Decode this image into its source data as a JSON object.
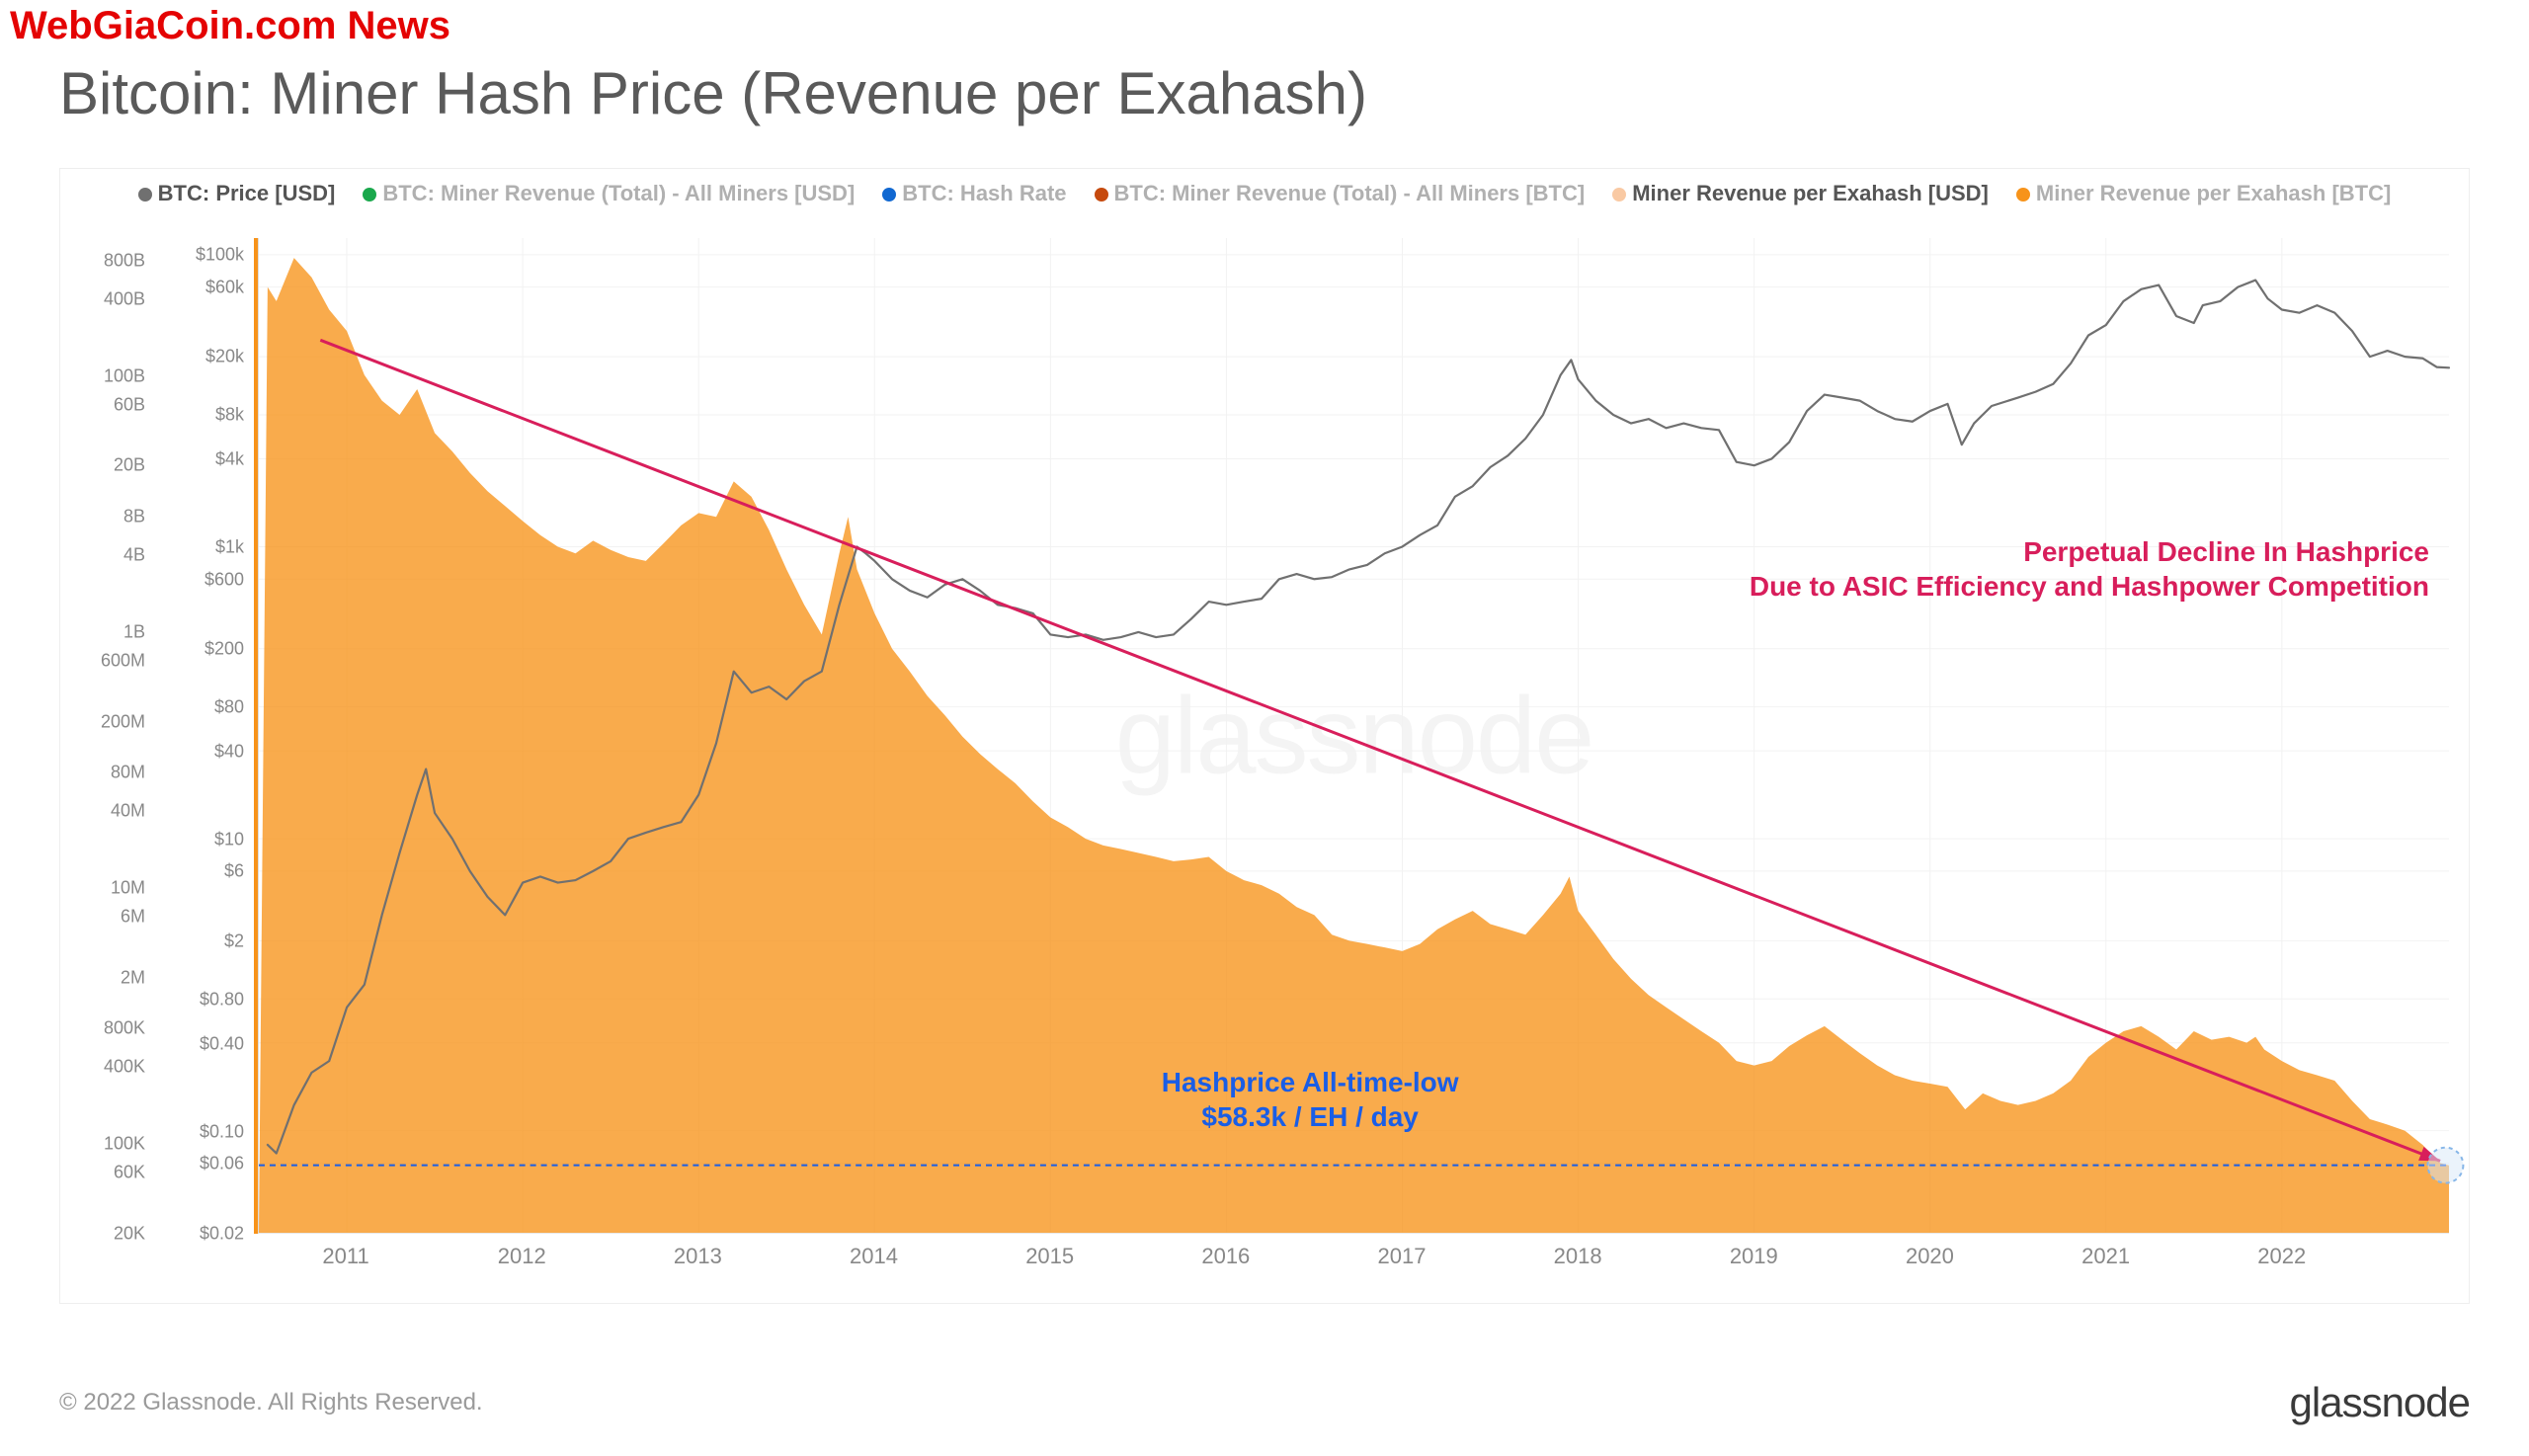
{
  "overlay_brand": "WebGiaCoin.com News",
  "title": "Bitcoin: Miner Hash Price (Revenue per Exahash)",
  "watermark": "glassnode",
  "footer_copyright": "© 2022 Glassnode. All Rights Reserved.",
  "footer_brand": "glassnode",
  "legend": {
    "items": [
      {
        "label": "BTC: Price [USD]",
        "color": "#707070",
        "active": true
      },
      {
        "label": "BTC: Miner Revenue (Total) - All Miners [USD]",
        "color": "#1aa84c",
        "active": false
      },
      {
        "label": "BTC: Hash Rate",
        "color": "#1168d1",
        "active": false
      },
      {
        "label": "BTC: Miner Revenue (Total) - All Miners [BTC]",
        "color": "#c64a0e",
        "active": false
      },
      {
        "label": "Miner Revenue per Exahash [USD]",
        "color": "#f9c9a3",
        "active": true
      },
      {
        "label": "Miner Revenue per Exahash [BTC]",
        "color": "#f7931a",
        "active": false
      }
    ]
  },
  "annotations": {
    "red_line1": "Perpetual Decline In Hashprice",
    "red_line2": "Due to ASIC Efficiency and Hashpower Competition",
    "blue_line1": "Hashprice All-time-low",
    "blue_line2": "$58.3k / EH / day",
    "red_color": "#d81e5b",
    "blue_color": "#1a5ee6"
  },
  "chart": {
    "type": "area_plus_line_log",
    "background_color": "#ffffff",
    "grid_color": "#f2f2f2",
    "plot_years": [
      "2011",
      "2012",
      "2013",
      "2014",
      "2015",
      "2016",
      "2017",
      "2018",
      "2019",
      "2020",
      "2021",
      "2022"
    ],
    "year_x_min": 2010.5,
    "year_x_max": 2022.95,
    "left_axis_outer": {
      "log_min": 20000,
      "log_max": 1200000000000,
      "ticks": [
        "800B",
        "400B",
        "100B",
        "60B",
        "20B",
        "8B",
        "4B",
        "1B",
        "600M",
        "200M",
        "80M",
        "40M",
        "10M",
        "6M",
        "2M",
        "800K",
        "400K",
        "100K",
        "60K",
        "20K"
      ],
      "tick_values": [
        800000000000,
        400000000000,
        100000000000,
        60000000000,
        20000000000,
        8000000000,
        4000000000,
        1000000000,
        600000000,
        200000000,
        80000000,
        40000000,
        10000000,
        6000000,
        2000000,
        800000,
        400000,
        100000,
        60000,
        20000
      ]
    },
    "left_axis_inner": {
      "log_min": 0.02,
      "log_max": 130000,
      "ticks": [
        "$100k",
        "$60k",
        "$20k",
        "$8k",
        "$4k",
        "$1k",
        "$600",
        "$200",
        "$80",
        "$40",
        "$10",
        "$6",
        "$2",
        "$0.80",
        "$0.40",
        "$0.10",
        "$0.06",
        "$0.02"
      ],
      "tick_values": [
        100000,
        60000,
        20000,
        8000,
        4000,
        1000,
        600,
        200,
        80,
        40,
        10,
        6,
        2,
        0.8,
        0.4,
        0.1,
        0.06,
        0.02
      ]
    },
    "hashprice_area": {
      "color": "#f7931a",
      "opacity": 0.78,
      "points_year_value": [
        [
          2010.55,
          60000
        ],
        [
          2010.6,
          48000
        ],
        [
          2010.7,
          95000
        ],
        [
          2010.8,
          70000
        ],
        [
          2010.9,
          42000
        ],
        [
          2011.0,
          30000
        ],
        [
          2011.1,
          15000
        ],
        [
          2011.2,
          10000
        ],
        [
          2011.3,
          8000
        ],
        [
          2011.4,
          12000
        ],
        [
          2011.5,
          6000
        ],
        [
          2011.6,
          4500
        ],
        [
          2011.7,
          3200
        ],
        [
          2011.8,
          2400
        ],
        [
          2011.9,
          1900
        ],
        [
          2012.0,
          1500
        ],
        [
          2012.1,
          1200
        ],
        [
          2012.2,
          1000
        ],
        [
          2012.3,
          900
        ],
        [
          2012.4,
          1100
        ],
        [
          2012.5,
          950
        ],
        [
          2012.6,
          850
        ],
        [
          2012.7,
          800
        ],
        [
          2012.8,
          1050
        ],
        [
          2012.9,
          1400
        ],
        [
          2013.0,
          1700
        ],
        [
          2013.1,
          1600
        ],
        [
          2013.2,
          2800
        ],
        [
          2013.3,
          2200
        ],
        [
          2013.4,
          1300
        ],
        [
          2013.5,
          700
        ],
        [
          2013.6,
          400
        ],
        [
          2013.7,
          250
        ],
        [
          2013.8,
          900
        ],
        [
          2013.85,
          1600
        ],
        [
          2013.9,
          700
        ],
        [
          2014.0,
          350
        ],
        [
          2014.1,
          200
        ],
        [
          2014.2,
          140
        ],
        [
          2014.3,
          95
        ],
        [
          2014.4,
          70
        ],
        [
          2014.5,
          50
        ],
        [
          2014.6,
          38
        ],
        [
          2014.7,
          30
        ],
        [
          2014.8,
          24
        ],
        [
          2014.9,
          18
        ],
        [
          2015.0,
          14
        ],
        [
          2015.1,
          12
        ],
        [
          2015.2,
          10
        ],
        [
          2015.3,
          9
        ],
        [
          2015.4,
          8.5
        ],
        [
          2015.5,
          8
        ],
        [
          2015.6,
          7.5
        ],
        [
          2015.7,
          7
        ],
        [
          2015.8,
          7.2
        ],
        [
          2015.9,
          7.5
        ],
        [
          2016.0,
          6
        ],
        [
          2016.1,
          5.2
        ],
        [
          2016.2,
          4.8
        ],
        [
          2016.3,
          4.2
        ],
        [
          2016.4,
          3.4
        ],
        [
          2016.5,
          3.0
        ],
        [
          2016.6,
          2.2
        ],
        [
          2016.7,
          2.0
        ],
        [
          2016.8,
          1.9
        ],
        [
          2016.9,
          1.8
        ],
        [
          2017.0,
          1.7
        ],
        [
          2017.1,
          1.9
        ],
        [
          2017.2,
          2.4
        ],
        [
          2017.3,
          2.8
        ],
        [
          2017.4,
          3.2
        ],
        [
          2017.5,
          2.6
        ],
        [
          2017.6,
          2.4
        ],
        [
          2017.7,
          2.2
        ],
        [
          2017.8,
          3.0
        ],
        [
          2017.9,
          4.2
        ],
        [
          2017.95,
          5.5
        ],
        [
          2018.0,
          3.2
        ],
        [
          2018.1,
          2.2
        ],
        [
          2018.2,
          1.5
        ],
        [
          2018.3,
          1.1
        ],
        [
          2018.4,
          0.85
        ],
        [
          2018.5,
          0.7
        ],
        [
          2018.6,
          0.58
        ],
        [
          2018.7,
          0.48
        ],
        [
          2018.8,
          0.4
        ],
        [
          2018.9,
          0.3
        ],
        [
          2019.0,
          0.28
        ],
        [
          2019.1,
          0.3
        ],
        [
          2019.2,
          0.38
        ],
        [
          2019.3,
          0.45
        ],
        [
          2019.4,
          0.52
        ],
        [
          2019.5,
          0.42
        ],
        [
          2019.6,
          0.34
        ],
        [
          2019.7,
          0.28
        ],
        [
          2019.8,
          0.24
        ],
        [
          2019.9,
          0.22
        ],
        [
          2020.0,
          0.21
        ],
        [
          2020.1,
          0.2
        ],
        [
          2020.2,
          0.14
        ],
        [
          2020.3,
          0.18
        ],
        [
          2020.4,
          0.16
        ],
        [
          2020.5,
          0.15
        ],
        [
          2020.6,
          0.16
        ],
        [
          2020.7,
          0.18
        ],
        [
          2020.8,
          0.22
        ],
        [
          2020.9,
          0.32
        ],
        [
          2021.0,
          0.4
        ],
        [
          2021.1,
          0.48
        ],
        [
          2021.2,
          0.52
        ],
        [
          2021.3,
          0.44
        ],
        [
          2021.4,
          0.36
        ],
        [
          2021.5,
          0.48
        ],
        [
          2021.6,
          0.42
        ],
        [
          2021.7,
          0.44
        ],
        [
          2021.8,
          0.4
        ],
        [
          2021.85,
          0.44
        ],
        [
          2021.9,
          0.36
        ],
        [
          2022.0,
          0.3
        ],
        [
          2022.1,
          0.26
        ],
        [
          2022.2,
          0.24
        ],
        [
          2022.3,
          0.22
        ],
        [
          2022.4,
          0.16
        ],
        [
          2022.5,
          0.12
        ],
        [
          2022.6,
          0.11
        ],
        [
          2022.7,
          0.1
        ],
        [
          2022.8,
          0.08
        ],
        [
          2022.9,
          0.06
        ],
        [
          2022.95,
          0.058
        ]
      ]
    },
    "price_line": {
      "color": "#707070",
      "width": 2.2,
      "points_year_value": [
        [
          2010.55,
          0.08
        ],
        [
          2010.6,
          0.07
        ],
        [
          2010.7,
          0.15
        ],
        [
          2010.8,
          0.25
        ],
        [
          2010.9,
          0.3
        ],
        [
          2011.0,
          0.7
        ],
        [
          2011.1,
          1.0
        ],
        [
          2011.2,
          3.0
        ],
        [
          2011.3,
          8.0
        ],
        [
          2011.4,
          20.0
        ],
        [
          2011.45,
          30.0
        ],
        [
          2011.5,
          15.0
        ],
        [
          2011.6,
          10.0
        ],
        [
          2011.7,
          6.0
        ],
        [
          2011.8,
          4.0
        ],
        [
          2011.9,
          3.0
        ],
        [
          2012.0,
          5.0
        ],
        [
          2012.1,
          5.5
        ],
        [
          2012.2,
          5.0
        ],
        [
          2012.3,
          5.2
        ],
        [
          2012.4,
          6.0
        ],
        [
          2012.5,
          7.0
        ],
        [
          2012.6,
          10.0
        ],
        [
          2012.7,
          11.0
        ],
        [
          2012.8,
          12.0
        ],
        [
          2012.9,
          13.0
        ],
        [
          2013.0,
          20.0
        ],
        [
          2013.1,
          45.0
        ],
        [
          2013.2,
          140.0
        ],
        [
          2013.3,
          100.0
        ],
        [
          2013.4,
          110.0
        ],
        [
          2013.5,
          90.0
        ],
        [
          2013.6,
          120.0
        ],
        [
          2013.7,
          140.0
        ],
        [
          2013.8,
          400.0
        ],
        [
          2013.9,
          1000.0
        ],
        [
          2013.95,
          900.0
        ],
        [
          2014.0,
          800.0
        ],
        [
          2014.1,
          600.0
        ],
        [
          2014.2,
          500.0
        ],
        [
          2014.3,
          450.0
        ],
        [
          2014.4,
          550.0
        ],
        [
          2014.5,
          600.0
        ],
        [
          2014.6,
          500.0
        ],
        [
          2014.7,
          400.0
        ],
        [
          2014.8,
          380.0
        ],
        [
          2014.9,
          350.0
        ],
        [
          2015.0,
          250.0
        ],
        [
          2015.1,
          240.0
        ],
        [
          2015.2,
          250.0
        ],
        [
          2015.3,
          230.0
        ],
        [
          2015.4,
          240.0
        ],
        [
          2015.5,
          260.0
        ],
        [
          2015.6,
          240.0
        ],
        [
          2015.7,
          250.0
        ],
        [
          2015.8,
          320.0
        ],
        [
          2015.9,
          420.0
        ],
        [
          2016.0,
          400.0
        ],
        [
          2016.1,
          420.0
        ],
        [
          2016.2,
          440.0
        ],
        [
          2016.3,
          600.0
        ],
        [
          2016.4,
          650.0
        ],
        [
          2016.5,
          600.0
        ],
        [
          2016.6,
          620.0
        ],
        [
          2016.7,
          700.0
        ],
        [
          2016.8,
          750.0
        ],
        [
          2016.9,
          900.0
        ],
        [
          2017.0,
          1000.0
        ],
        [
          2017.1,
          1200.0
        ],
        [
          2017.2,
          1400.0
        ],
        [
          2017.3,
          2200.0
        ],
        [
          2017.4,
          2600.0
        ],
        [
          2017.5,
          3500.0
        ],
        [
          2017.6,
          4200.0
        ],
        [
          2017.7,
          5500.0
        ],
        [
          2017.8,
          8000.0
        ],
        [
          2017.9,
          15000.0
        ],
        [
          2017.96,
          19000.0
        ],
        [
          2018.0,
          14000.0
        ],
        [
          2018.1,
          10000.0
        ],
        [
          2018.2,
          8000.0
        ],
        [
          2018.3,
          7000.0
        ],
        [
          2018.4,
          7500.0
        ],
        [
          2018.5,
          6500.0
        ],
        [
          2018.6,
          7000.0
        ],
        [
          2018.7,
          6500.0
        ],
        [
          2018.8,
          6300.0
        ],
        [
          2018.9,
          3800.0
        ],
        [
          2019.0,
          3600.0
        ],
        [
          2019.1,
          4000.0
        ],
        [
          2019.2,
          5200.0
        ],
        [
          2019.3,
          8500.0
        ],
        [
          2019.4,
          11000.0
        ],
        [
          2019.5,
          10500.0
        ],
        [
          2019.6,
          10000.0
        ],
        [
          2019.7,
          8500.0
        ],
        [
          2019.8,
          7500.0
        ],
        [
          2019.9,
          7200.0
        ],
        [
          2020.0,
          8500.0
        ],
        [
          2020.1,
          9500.0
        ],
        [
          2020.18,
          5000.0
        ],
        [
          2020.25,
          7000.0
        ],
        [
          2020.35,
          9200.0
        ],
        [
          2020.5,
          10500.0
        ],
        [
          2020.6,
          11500.0
        ],
        [
          2020.7,
          13000.0
        ],
        [
          2020.8,
          18000.0
        ],
        [
          2020.9,
          28000.0
        ],
        [
          2021.0,
          33000.0
        ],
        [
          2021.1,
          48000.0
        ],
        [
          2021.2,
          58000.0
        ],
        [
          2021.3,
          62000.0
        ],
        [
          2021.4,
          38000.0
        ],
        [
          2021.5,
          34000.0
        ],
        [
          2021.55,
          45000.0
        ],
        [
          2021.65,
          48000.0
        ],
        [
          2021.75,
          60000.0
        ],
        [
          2021.85,
          67000.0
        ],
        [
          2021.92,
          50000.0
        ],
        [
          2022.0,
          42000.0
        ],
        [
          2022.1,
          40000.0
        ],
        [
          2022.2,
          45000.0
        ],
        [
          2022.3,
          40000.0
        ],
        [
          2022.4,
          30000.0
        ],
        [
          2022.5,
          20000.0
        ],
        [
          2022.6,
          22000.0
        ],
        [
          2022.7,
          20000.0
        ],
        [
          2022.8,
          19500.0
        ],
        [
          2022.88,
          17000.0
        ],
        [
          2022.95,
          16800.0
        ]
      ]
    },
    "trend_arrow": {
      "color": "#d81e5b",
      "width": 3,
      "start_year": 2010.85,
      "start_value": 26000,
      "end_year": 2022.9,
      "end_value": 0.062
    },
    "all_time_low_line": {
      "color": "#1a5ee6",
      "value": 0.058,
      "dash": "6,5"
    },
    "atl_marker": {
      "year": 2022.93,
      "value": 0.058,
      "ring_color": "#86b6e8",
      "fill_color": "#d7e7f7"
    }
  }
}
